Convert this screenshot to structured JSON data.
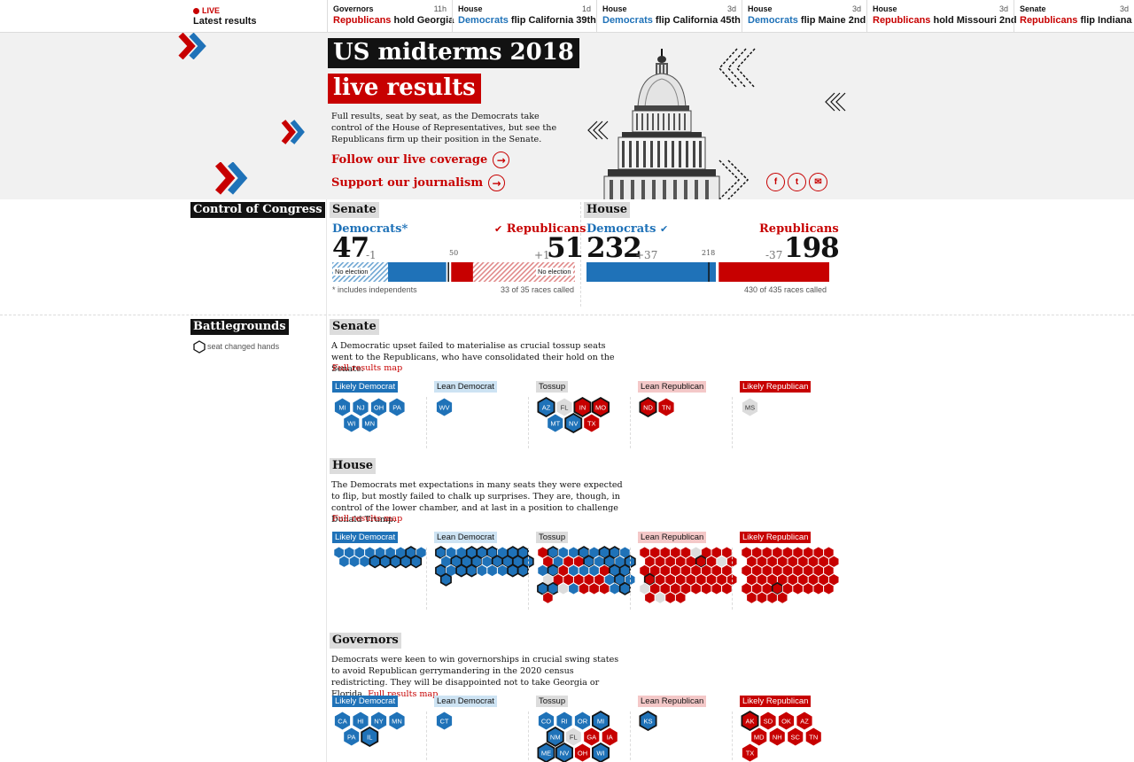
{
  "ticker": {
    "live": "LIVE",
    "latest": "Latest results",
    "items": [
      {
        "race": "Governors",
        "time": "11h",
        "party": "Republicans",
        "action": "hold Georgia",
        "side": "rep"
      },
      {
        "race": "House",
        "time": "1d",
        "party": "Democrats",
        "action": "flip California 39th",
        "side": "dem"
      },
      {
        "race": "House",
        "time": "3d",
        "party": "Democrats",
        "action": "flip California 45th",
        "side": "dem"
      },
      {
        "race": "House",
        "time": "3d",
        "party": "Democrats",
        "action": "flip Maine 2nd",
        "side": "dem"
      },
      {
        "race": "House",
        "time": "3d",
        "party": "Republicans",
        "action": "hold Missouri 2nd",
        "side": "rep"
      },
      {
        "race": "Senate",
        "time": "3d",
        "party": "Republicans",
        "action": "flip Indiana",
        "side": "rep"
      }
    ]
  },
  "hero": {
    "title_line1": "US midterms 2018",
    "title_line2": "live results",
    "description": "Full results, seat by seat, as the Democrats take control of the House of Representatives, but see the Republicans firm up their position in the Senate.",
    "link_coverage": "Follow our live coverage",
    "link_support": "Support our journalism",
    "share": [
      "f",
      "t",
      "✉"
    ]
  },
  "control": {
    "heading": "Control of Congress",
    "senate": {
      "label": "Senate",
      "dem_name": "Democrats*",
      "dem_seats": "47",
      "dem_change": "-1",
      "rep_name": "Republicans",
      "rep_check": "✔",
      "rep_seats": "51",
      "rep_change": "+1",
      "majority": "50",
      "no_election": "No election",
      "footnote": "* includes independents",
      "called": "33 of 35 races called",
      "dem_no_election": 23,
      "dem_elected": 24,
      "rep_elected": 9,
      "rep_no_election": 42,
      "total": 100
    },
    "house": {
      "label": "House",
      "dem_name": "Democrats",
      "dem_check": "✔",
      "dem_seats": "232",
      "dem_change": "+37",
      "rep_name": "Republicans",
      "rep_seats": "198",
      "rep_change": "-37",
      "majority": "218",
      "called": "430 of 435 races called",
      "total": 435
    }
  },
  "battlegrounds": {
    "heading": "Battlegrounds",
    "legend": "seat changed hands",
    "categories": [
      "Likely Democrat",
      "Lean Democrat",
      "Tossup",
      "Lean Republican",
      "Likely Republican"
    ],
    "link": "Full results map",
    "senate": {
      "label": "Senate",
      "description": "A Democratic upset failed to materialise as crucial tossup seats went to the Republicans, who have consolidated their hold on the Senate.",
      "likely_dem": [
        [
          "MI",
          "d",
          0
        ],
        [
          "NJ",
          "d",
          0
        ],
        [
          "OH",
          "d",
          0
        ],
        [
          "PA",
          "d",
          0
        ],
        [
          "WI",
          "d",
          0
        ],
        [
          "MN",
          "d",
          0
        ]
      ],
      "lean_dem": [
        [
          "WV",
          "d",
          0
        ]
      ],
      "tossup": [
        [
          "AZ",
          "d",
          1
        ],
        [
          "FL",
          "n",
          0
        ],
        [
          "IN",
          "r",
          1
        ],
        [
          "MO",
          "r",
          1
        ],
        [
          "MT",
          "d",
          0
        ],
        [
          "NV",
          "d",
          1
        ],
        [
          "TX",
          "r",
          0
        ]
      ],
      "lean_rep": [
        [
          "ND",
          "r",
          1
        ],
        [
          "TN",
          "r",
          0
        ]
      ],
      "likely_rep": [
        [
          "MS",
          "n",
          0
        ]
      ]
    },
    "house": {
      "label": "House",
      "description": "The Democrats met expectations in many seats they were expected to flip, but mostly failed to chalk up surprises. They are, though, in control of the lower chamber, and at last in a position to challenge Donald Trump.",
      "likely_dem": "dddddddDddddDDDDD",
      "lean_dem": "DddDDDdDDdDDDdDDDDDdDDdddDDD",
      "tossup": "rDddDdDDdrdrrDdDdDdDrdddrDDnrrrrrdDdDDndrrrdDr",
      "lean_rep": "rrrrrnrrrrrrrrRrnrrrrrrrrrrRrrrrrrrrnrrrrrrrrrnrr",
      "likely_rep": "rrrrrrrrrrrrrrrrrrrrrrrrrrrrrrrrrrrrrrrRrrrrrrrrr"
    },
    "governors": {
      "label": "Governors",
      "description": "Democrats were keen to win governorships in crucial swing states to avoid Republican gerrymandering in the 2020 census redistricting. They will be disappointed not to take Georgia or Florida.",
      "likely_dem": [
        [
          "CA",
          "d",
          0
        ],
        [
          "HI",
          "d",
          0
        ],
        [
          "NY",
          "d",
          0
        ],
        [
          "MN",
          "d",
          0
        ],
        [
          "PA",
          "d",
          0
        ],
        [
          "IL",
          "d",
          1
        ]
      ],
      "lean_dem": [
        [
          "CT",
          "d",
          0
        ]
      ],
      "tossup": [
        [
          "CO",
          "d",
          0
        ],
        [
          "RI",
          "d",
          0
        ],
        [
          "OR",
          "d",
          0
        ],
        [
          "MI",
          "d",
          1
        ],
        [
          "NM",
          "d",
          1
        ],
        [
          "FL",
          "n",
          0
        ],
        [
          "GA",
          "r",
          0
        ],
        [
          "IA",
          "r",
          0
        ],
        [
          "ME",
          "d",
          1
        ],
        [
          "NV",
          "d",
          1
        ],
        [
          "OH",
          "r",
          0
        ],
        [
          "WI",
          "d",
          1
        ]
      ],
      "lean_rep": [
        [
          "KS",
          "d",
          1
        ]
      ],
      "likely_rep": [
        [
          "AK",
          "r",
          1
        ],
        [
          "SD",
          "r",
          0
        ],
        [
          "OK",
          "r",
          0
        ],
        [
          "AZ",
          "r",
          0
        ],
        [
          "MD",
          "r",
          0
        ],
        [
          "NH",
          "r",
          0
        ],
        [
          "SC",
          "r",
          0
        ],
        [
          "TN",
          "r",
          0
        ],
        [
          "TX",
          "r",
          0
        ]
      ]
    }
  }
}
